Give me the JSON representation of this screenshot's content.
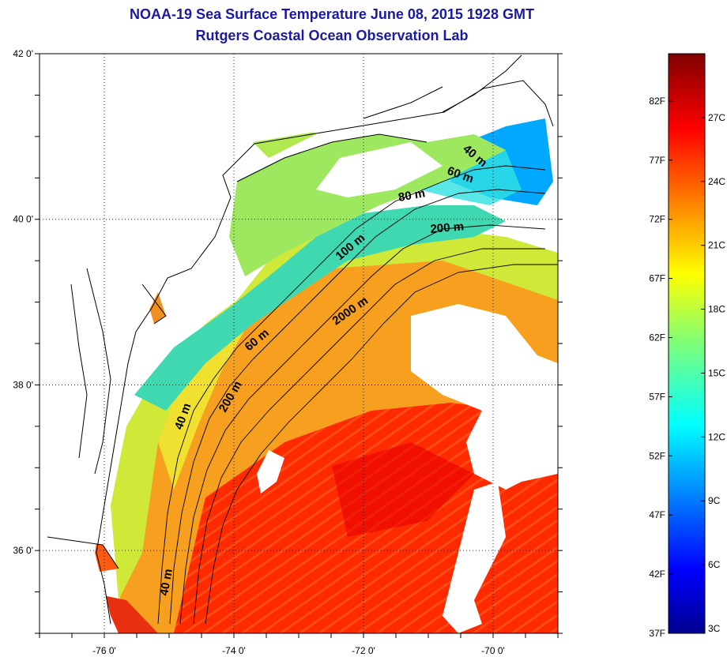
{
  "title_line1": "NOAA-19 Sea Surface Temperature June 08, 2015 1928 GMT",
  "title_line2": "Rutgers Coastal Ocean Observation Lab",
  "map": {
    "lon_range": [
      -77,
      -69
    ],
    "lat_range": [
      35,
      42
    ],
    "lat_ticks": [
      {
        "value": 42,
        "label": "42 0'"
      },
      {
        "value": 40,
        "label": "40 0'"
      },
      {
        "value": 38,
        "label": "38 0'"
      },
      {
        "value": 36,
        "label": "36 0'"
      }
    ],
    "lon_ticks": [
      {
        "value": -76,
        "label": "-76 0'"
      },
      {
        "value": -74,
        "label": "-74 0'"
      },
      {
        "value": -72,
        "label": "-72 0'"
      },
      {
        "value": -70,
        "label": "-70 0'"
      }
    ],
    "grid": "dotted",
    "contour_labels": [
      "40 m",
      "60 m",
      "80 m",
      "200 m",
      "100 m",
      "2000 m",
      "60 m",
      "200 m",
      "40 m",
      "40 m"
    ]
  },
  "colorbar": {
    "colormap": "jet",
    "fahrenheit": [
      {
        "value": 82,
        "label": "82F"
      },
      {
        "value": 77,
        "label": "77F"
      },
      {
        "value": 72,
        "label": "72F"
      },
      {
        "value": 67,
        "label": "67F"
      },
      {
        "value": 62,
        "label": "62F"
      },
      {
        "value": 57,
        "label": "57F"
      },
      {
        "value": 52,
        "label": "52F"
      },
      {
        "value": 47,
        "label": "47F"
      },
      {
        "value": 42,
        "label": "42F"
      },
      {
        "value": 37,
        "label": "37F"
      }
    ],
    "celsius": [
      {
        "value": 27,
        "label": "27C"
      },
      {
        "value": 24,
        "label": "24C"
      },
      {
        "value": 21,
        "label": "21C"
      },
      {
        "value": 18,
        "label": "18C"
      },
      {
        "value": 15,
        "label": "15C"
      },
      {
        "value": 12,
        "label": "12C"
      },
      {
        "value": 9,
        "label": "9C"
      },
      {
        "value": 6,
        "label": "6C"
      },
      {
        "value": 3,
        "label": "3C"
      }
    ]
  }
}
